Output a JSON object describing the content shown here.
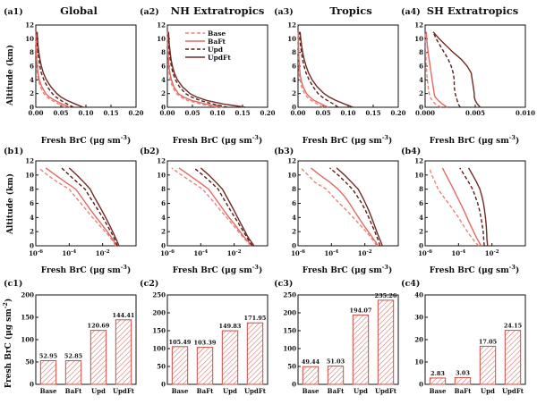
{
  "colors": {
    "base": "#e8837d",
    "baft": "#e06a62",
    "upd": "#5a1e1a",
    "updft": "#6e2a24",
    "bar_edge": "#cf4b44",
    "hatch": "#d97570"
  },
  "legend": {
    "position": "top-right of panel a2",
    "items": [
      {
        "label": "Base",
        "style": "dashed",
        "color_key": "base"
      },
      {
        "label": "BaFt",
        "style": "solid",
        "color_key": "baft"
      },
      {
        "label": "Upd",
        "style": "dashed",
        "color_key": "upd"
      },
      {
        "label": "UpdFt",
        "style": "solid",
        "color_key": "updft"
      }
    ]
  },
  "column_titles": [
    "Global",
    "NH Extratropics",
    "Tropics",
    "SH Extratropics"
  ],
  "panel_labels": {
    "a": [
      "(a1)",
      "(a2)",
      "(a3)",
      "(a4)"
    ],
    "b": [
      "(b1)",
      "(b2)",
      "(b3)",
      "(b4)"
    ],
    "c": [
      "(c1)",
      "(c2)",
      "(c3)",
      "(c4)"
    ]
  },
  "axis_labels": {
    "profile_y": "Altitude (km)",
    "profile_x_main": "Fresh BrC (μg sm",
    "profile_x_sup": "-3",
    "profile_x_end": ")",
    "bar_y_main": "Fresh BrC (μg sm",
    "bar_y_sup": "-2",
    "bar_y_end": ")"
  },
  "chart_data": {
    "altitudes": [
      0,
      0.5,
      1,
      1.5,
      2,
      3,
      4,
      5,
      6,
      7,
      8,
      9,
      10,
      11
    ],
    "series_names": [
      "Base",
      "BaFt",
      "Upd",
      "UpdFt"
    ],
    "row_a": {
      "type": "line",
      "ylim": [
        0,
        12
      ],
      "yticks": [
        "0",
        "2",
        "4",
        "6",
        "8",
        "10",
        "12"
      ],
      "panels": [
        {
          "xlim": [
            0,
            0.2
          ],
          "xticks": [
            "0.00",
            "0.05",
            "0.10",
            "0.15",
            "0.20"
          ],
          "series": [
            [
              0.058,
              0.045,
              0.032,
              0.022,
              0.016,
              0.009,
              0.005,
              0.003,
              0.002,
              0.0014,
              0.001,
              0.0008,
              0.0006,
              0.0005
            ],
            [
              0.068,
              0.052,
              0.038,
              0.027,
              0.02,
              0.012,
              0.007,
              0.0045,
              0.003,
              0.002,
              0.0015,
              0.0011,
              0.0009,
              0.0007
            ],
            [
              0.075,
              0.062,
              0.05,
              0.04,
              0.033,
              0.023,
              0.016,
              0.011,
              0.008,
              0.006,
              0.0045,
              0.0033,
              0.0025,
              0.002
            ],
            [
              0.095,
              0.078,
              0.062,
              0.05,
              0.042,
              0.03,
              0.021,
              0.015,
              0.011,
              0.0082,
              0.006,
              0.0045,
              0.0034,
              0.0027
            ]
          ]
        },
        {
          "xlim": [
            0,
            0.2
          ],
          "xticks": [
            "0.00",
            "0.05",
            "0.10",
            "0.15",
            "0.20"
          ],
          "series": [
            [
              0.1,
              0.065,
              0.04,
              0.027,
              0.018,
              0.01,
              0.006,
              0.0035,
              0.0022,
              0.0015,
              0.001,
              0.0008,
              0.0006,
              0.0005
            ],
            [
              0.11,
              0.075,
              0.048,
              0.032,
              0.022,
              0.013,
              0.008,
              0.005,
              0.0032,
              0.0022,
              0.0015,
              0.0011,
              0.0009,
              0.0007
            ],
            [
              0.12,
              0.09,
              0.065,
              0.048,
              0.036,
              0.024,
              0.016,
              0.011,
              0.0078,
              0.0056,
              0.004,
              0.003,
              0.0023,
              0.0018
            ],
            [
              0.155,
              0.11,
              0.078,
              0.058,
              0.045,
              0.03,
              0.02,
              0.014,
              0.01,
              0.0074,
              0.0055,
              0.0041,
              0.0031,
              0.0024
            ]
          ]
        },
        {
          "xlim": [
            0,
            0.2
          ],
          "xticks": [
            "0.00",
            "0.05",
            "0.10",
            "0.15",
            "0.20"
          ],
          "series": [
            [
              0.05,
              0.038,
              0.026,
              0.018,
              0.013,
              0.007,
              0.004,
              0.0025,
              0.0016,
              0.0011,
              0.0008,
              0.0006,
              0.0005,
              0.0004
            ],
            [
              0.06,
              0.046,
              0.032,
              0.023,
              0.017,
              0.01,
              0.006,
              0.004,
              0.0027,
              0.0019,
              0.0014,
              0.001,
              0.0008,
              0.0006
            ],
            [
              0.08,
              0.07,
              0.058,
              0.048,
              0.04,
              0.03,
              0.022,
              0.016,
              0.012,
              0.009,
              0.0067,
              0.005,
              0.0038,
              0.0029
            ],
            [
              0.11,
              0.092,
              0.075,
              0.062,
              0.052,
              0.038,
              0.028,
              0.021,
              0.016,
              0.0122,
              0.0093,
              0.0071,
              0.0054,
              0.0041
            ]
          ]
        },
        {
          "xlim": [
            0,
            0.01
          ],
          "xticks": [
            "0.000",
            "0.005",
            "0.010"
          ],
          "series": [
            [
              0.0016,
              0.001,
              0.0007,
              0.0005,
              0.0004,
              0.0003,
              0.00022,
              0.00016,
              0.00012,
              9e-05,
              7e-05,
              5e-05,
              4e-05,
              3e-05
            ],
            [
              0.0022,
              0.0017,
              0.0013,
              0.001,
              0.0009,
              0.0008,
              0.0007,
              0.0006,
              0.0005,
              0.0004,
              0.0003,
              0.00022,
              0.00016,
              0.00012
            ],
            [
              0.0035,
              0.0033,
              0.0032,
              0.0031,
              0.003,
              0.0029,
              0.0029,
              0.0028,
              0.0026,
              0.0023,
              0.0019,
              0.0015,
              0.0011,
              0.0008
            ],
            [
              0.0055,
              0.0052,
              0.005,
              0.0049,
              0.0049,
              0.0048,
              0.0047,
              0.0046,
              0.0042,
              0.0036,
              0.0028,
              0.0021,
              0.0014,
              0.0008
            ]
          ]
        }
      ]
    },
    "row_b": {
      "type": "line",
      "xscale": "log",
      "xlim": [
        1e-06,
        1
      ],
      "xtick_values": [
        1e-06,
        0.0001,
        0.01
      ],
      "xtick_exponents": [
        "-6",
        "-4",
        "-2"
      ],
      "xtick_base": "10",
      "ylim": [
        0,
        12
      ],
      "yticks": [
        "0",
        "2",
        "4",
        "6",
        "8",
        "10",
        "12"
      ],
      "panels": [
        {
          "series": [
            [
              0.058,
              0.045,
              0.032,
              0.022,
              0.014,
              0.006,
              0.0025,
              0.0011,
              0.0005,
              0.00022,
              0.0001,
              2e-05,
              5e-06,
              1.5e-06
            ],
            [
              0.068,
              0.052,
              0.038,
              0.027,
              0.019,
              0.009,
              0.0042,
              0.002,
              0.001,
              0.0005,
              0.00025,
              6e-05,
              1.5e-05,
              4e-06
            ],
            [
              0.075,
              0.062,
              0.05,
              0.04,
              0.031,
              0.018,
              0.01,
              0.0055,
              0.003,
              0.0016,
              0.0009,
              0.0003,
              0.0001,
              3.5e-05
            ],
            [
              0.095,
              0.078,
              0.062,
              0.05,
              0.04,
              0.025,
              0.015,
              0.009,
              0.0052,
              0.003,
              0.0018,
              0.00075,
              0.00028,
              0.0001
            ]
          ]
        },
        {
          "series": [
            [
              0.1,
              0.065,
              0.04,
              0.027,
              0.018,
              0.008,
              0.0035,
              0.0015,
              0.0007,
              0.0003,
              0.00013,
              3e-05,
              7e-06,
              1.8e-06
            ],
            [
              0.11,
              0.075,
              0.048,
              0.032,
              0.022,
              0.011,
              0.005,
              0.0024,
              0.0012,
              0.0006,
              0.0003,
              8e-05,
              2e-05,
              5e-06
            ],
            [
              0.12,
              0.09,
              0.065,
              0.048,
              0.036,
              0.02,
              0.011,
              0.006,
              0.0034,
              0.0019,
              0.0011,
              0.0004,
              0.00013,
              4e-05
            ],
            [
              0.155,
              0.11,
              0.078,
              0.058,
              0.045,
              0.027,
              0.016,
              0.0098,
              0.0058,
              0.0034,
              0.002,
              0.0008,
              0.0003,
              0.0001
            ]
          ]
        },
        {
          "series": [
            [
              0.05,
              0.038,
              0.026,
              0.018,
              0.012,
              0.005,
              0.002,
              0.0008,
              0.0003,
              0.00012,
              5e-05,
              1e-05,
              4e-06,
              1.5e-06
            ],
            [
              0.06,
              0.046,
              0.032,
              0.023,
              0.016,
              0.008,
              0.0042,
              0.0022,
              0.0012,
              0.0006,
              0.00025,
              8e-05,
              2e-05,
              6e-06
            ],
            [
              0.08,
              0.07,
              0.058,
              0.048,
              0.04,
              0.026,
              0.017,
              0.011,
              0.0065,
              0.0035,
              0.0018,
              0.0007,
              0.00025,
              8e-05
            ],
            [
              0.11,
              0.092,
              0.075,
              0.062,
              0.052,
              0.036,
              0.025,
              0.017,
              0.011,
              0.0068,
              0.004,
              0.0016,
              0.0006,
              0.0002
            ]
          ]
        },
        {
          "series": [
            [
              0.0016,
              0.001,
              0.0007,
              0.00048,
              0.00034,
              0.00018,
              0.0001,
              5e-05,
              2.5e-05,
              1.2e-05,
              6e-06,
              4e-06,
              2.5e-06,
              1.8e-06
            ],
            [
              0.0022,
              0.0017,
              0.0013,
              0.001,
              0.0008,
              0.0005,
              0.00032,
              0.00021,
              0.00013,
              8e-05,
              5e-05,
              3e-05,
              1.8e-05,
              1.1e-05
            ],
            [
              0.0035,
              0.0033,
              0.0032,
              0.0031,
              0.003,
              0.0026,
              0.0022,
              0.0018,
              0.0014,
              0.001,
              0.0007,
              0.0004,
              0.00022,
              0.00012
            ],
            [
              0.0055,
              0.0052,
              0.005,
              0.0049,
              0.0048,
              0.0045,
              0.0041,
              0.0036,
              0.0031,
              0.0025,
              0.0019,
              0.0012,
              0.0007,
              0.0004
            ]
          ]
        }
      ]
    },
    "row_c": {
      "type": "bar",
      "categories": [
        "Base",
        "BaFt",
        "Upd",
        "UpdFt"
      ],
      "panels": [
        {
          "ylim": [
            0,
            200
          ],
          "yticks": [
            "0",
            "50",
            "100",
            "150",
            "200"
          ],
          "tick_values": [
            0,
            50,
            100,
            150,
            200
          ],
          "values": [
            52.95,
            52.85,
            120.69,
            144.41
          ],
          "labels": [
            "52.95",
            "52.85",
            "120.69",
            "144.41"
          ]
        },
        {
          "ylim": [
            0,
            250
          ],
          "yticks": [
            "0",
            "50",
            "100",
            "150",
            "200",
            "250"
          ],
          "tick_values": [
            0,
            50,
            100,
            150,
            200,
            250
          ],
          "values": [
            105.49,
            103.39,
            149.83,
            171.95
          ],
          "labels": [
            "105.49",
            "103.39",
            "149.83",
            "171.95"
          ]
        },
        {
          "ylim": [
            0,
            250
          ],
          "yticks": [
            "0",
            "50",
            "100",
            "150",
            "200",
            "250"
          ],
          "tick_values": [
            0,
            50,
            100,
            150,
            200,
            250
          ],
          "values": [
            49.44,
            51.03,
            194.07,
            235.26
          ],
          "labels": [
            "49.44",
            "51.03",
            "194.07",
            "235.26"
          ]
        },
        {
          "ylim": [
            0,
            40
          ],
          "yticks": [
            "0",
            "10",
            "20",
            "30",
            "40"
          ],
          "tick_values": [
            0,
            10,
            20,
            30,
            40
          ],
          "values": [
            2.83,
            3.03,
            17.05,
            24.15
          ],
          "labels": [
            "2.83",
            "3.03",
            "17.05",
            "24.15"
          ]
        }
      ]
    }
  }
}
